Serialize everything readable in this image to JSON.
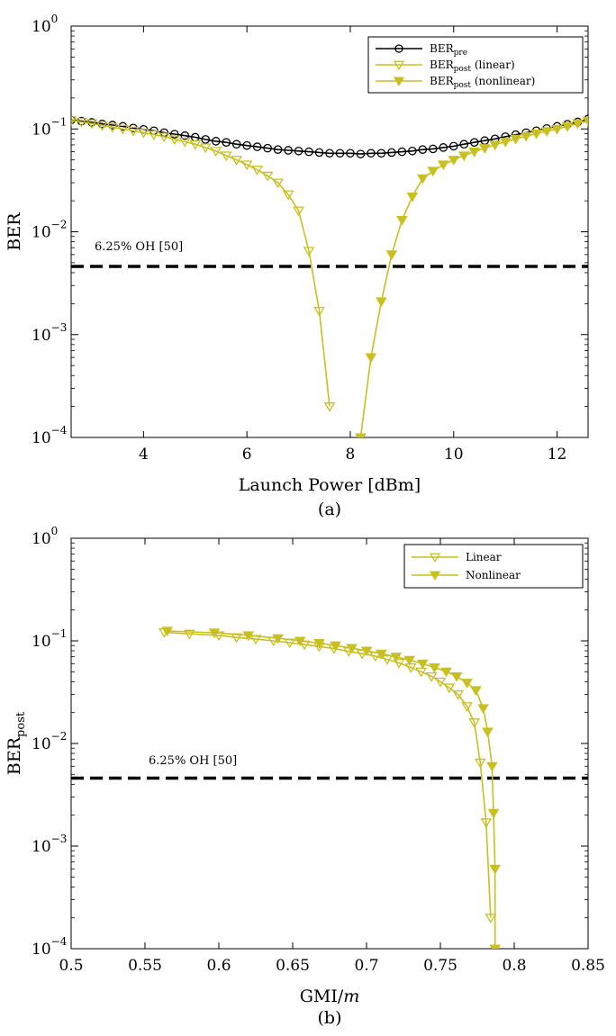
{
  "chart_data": [
    {
      "type": "line",
      "caption": "(a)",
      "xlabel": "Launch Power [dBm]",
      "ylabel": "BER",
      "xlim": [
        2.6,
        12.6
      ],
      "ylim": [
        0.0001,
        1
      ],
      "yscale": "log",
      "xticks": [
        4,
        6,
        8,
        10,
        12
      ],
      "xtick_labels": [
        "4",
        "6",
        "8",
        "10",
        "12"
      ],
      "yticks": [
        0.0001,
        0.001,
        0.01,
        0.1,
        1
      ],
      "ytick_labels": [
        {
          "base": "10",
          "exp": "−4"
        },
        {
          "base": "10",
          "exp": "−3"
        },
        {
          "base": "10",
          "exp": "−2"
        },
        {
          "base": "10",
          "exp": "−1"
        },
        {
          "base": "10",
          "exp": "0"
        }
      ],
      "grid": false,
      "legend_position": "top-right",
      "threshold": {
        "value": 0.0046,
        "label": "6.25% OH [50]"
      },
      "series": [
        {
          "legend_main": "BER",
          "legend_sub": "pre",
          "legend_suffix": "",
          "color": "#000000",
          "marker": "circle",
          "x": [
            2.6,
            2.8,
            3.0,
            3.2,
            3.4,
            3.6,
            3.8,
            4.0,
            4.2,
            4.4,
            4.6,
            4.8,
            5.0,
            5.2,
            5.4,
            5.6,
            5.8,
            6.0,
            6.2,
            6.4,
            6.6,
            6.8,
            7.0,
            7.2,
            7.4,
            7.6,
            7.8,
            8.0,
            8.2,
            8.4,
            8.6,
            8.8,
            9.0,
            9.2,
            9.4,
            9.6,
            9.8,
            10.0,
            10.2,
            10.4,
            10.6,
            10.8,
            11.0,
            11.2,
            11.4,
            11.6,
            11.8,
            12.0,
            12.2,
            12.4,
            12.6
          ],
          "y": [
            0.122,
            0.119,
            0.116,
            0.112,
            0.109,
            0.106,
            0.102,
            0.099,
            0.096,
            0.092,
            0.089,
            0.086,
            0.083,
            0.079,
            0.076,
            0.074,
            0.071,
            0.069,
            0.067,
            0.065,
            0.063,
            0.062,
            0.061,
            0.06,
            0.059,
            0.058,
            0.058,
            0.058,
            0.057,
            0.058,
            0.058,
            0.059,
            0.06,
            0.061,
            0.063,
            0.064,
            0.066,
            0.068,
            0.071,
            0.074,
            0.077,
            0.08,
            0.084,
            0.088,
            0.092,
            0.096,
            0.101,
            0.106,
            0.111,
            0.117,
            0.125
          ]
        },
        {
          "legend_main": "BER",
          "legend_sub": "post",
          "legend_suffix": " (linear)",
          "color": "#c8c020",
          "marker": "triangle-down-open",
          "x": [
            2.6,
            2.8,
            3.0,
            3.2,
            3.4,
            3.6,
            3.8,
            4.0,
            4.2,
            4.4,
            4.6,
            4.8,
            5.0,
            5.2,
            5.4,
            5.6,
            5.8,
            6.0,
            6.2,
            6.4,
            6.6,
            6.8,
            7.0,
            7.2,
            7.4,
            7.6
          ],
          "y": [
            0.121,
            0.117,
            0.113,
            0.108,
            0.104,
            0.1,
            0.096,
            0.092,
            0.088,
            0.084,
            0.079,
            0.075,
            0.071,
            0.066,
            0.061,
            0.055,
            0.05,
            0.045,
            0.04,
            0.035,
            0.03,
            0.023,
            0.016,
            0.0065,
            0.0017,
            0.0002
          ]
        },
        {
          "legend_main": "BER",
          "legend_sub": "post",
          "legend_suffix": " (nonlinear)",
          "color": "#c8c020",
          "marker": "triangle-down-filled",
          "x": [
            8.2,
            8.4,
            8.6,
            8.8,
            9.0,
            9.2,
            9.4,
            9.6,
            9.8,
            10.0,
            10.2,
            10.4,
            10.6,
            10.8,
            11.0,
            11.2,
            11.4,
            11.6,
            11.8,
            12.0,
            12.2,
            12.4,
            12.6
          ],
          "y": [
            0.0001,
            0.0006,
            0.0021,
            0.006,
            0.013,
            0.022,
            0.033,
            0.039,
            0.045,
            0.05,
            0.055,
            0.06,
            0.065,
            0.07,
            0.075,
            0.08,
            0.085,
            0.09,
            0.095,
            0.1,
            0.106,
            0.113,
            0.12
          ]
        }
      ]
    },
    {
      "type": "line",
      "caption": "(b)",
      "xlabel": "GMI/m",
      "xlabel_main": "GMI/",
      "xlabel_italic": "m",
      "ylabel_main": "BER",
      "ylabel_sub": "post",
      "xlim": [
        0.5,
        0.85
      ],
      "ylim": [
        0.0001,
        1
      ],
      "yscale": "log",
      "xticks": [
        0.5,
        0.55,
        0.6,
        0.65,
        0.7,
        0.75,
        0.8,
        0.85
      ],
      "xtick_labels": [
        "0.5",
        "0.55",
        "0.6",
        "0.65",
        "0.7",
        "0.75",
        "0.8",
        "0.85"
      ],
      "yticks": [
        0.0001,
        0.001,
        0.01,
        0.1,
        1
      ],
      "ytick_labels": [
        {
          "base": "10",
          "exp": "−4"
        },
        {
          "base": "10",
          "exp": "−3"
        },
        {
          "base": "10",
          "exp": "−2"
        },
        {
          "base": "10",
          "exp": "−1"
        },
        {
          "base": "10",
          "exp": "0"
        }
      ],
      "grid": false,
      "legend_position": "top-right",
      "threshold": {
        "value": 0.0046,
        "label": "6.25% OH [50]"
      },
      "series": [
        {
          "legend_main": "Linear",
          "legend_sub": "",
          "legend_suffix": "",
          "color": "#c8c020",
          "marker": "triangle-down-open",
          "x": [
            0.563,
            0.58,
            0.6,
            0.612,
            0.625,
            0.637,
            0.648,
            0.658,
            0.668,
            0.678,
            0.688,
            0.697,
            0.706,
            0.714,
            0.722,
            0.73,
            0.737,
            0.744,
            0.75,
            0.756,
            0.762,
            0.768,
            0.773,
            0.777,
            0.781,
            0.784
          ],
          "y": [
            0.121,
            0.117,
            0.113,
            0.108,
            0.104,
            0.1,
            0.096,
            0.092,
            0.088,
            0.084,
            0.079,
            0.075,
            0.071,
            0.066,
            0.061,
            0.055,
            0.05,
            0.045,
            0.04,
            0.035,
            0.03,
            0.023,
            0.016,
            0.0065,
            0.0017,
            0.0002
          ]
        },
        {
          "legend_main": "Nonlinear",
          "legend_sub": "",
          "legend_suffix": "",
          "color": "#c8c020",
          "marker": "triangle-down-filled",
          "x": [
            0.787,
            0.787,
            0.786,
            0.785,
            0.782,
            0.779,
            0.774,
            0.768,
            0.761,
            0.754,
            0.746,
            0.738,
            0.729,
            0.72,
            0.71,
            0.7,
            0.69,
            0.679,
            0.668,
            0.655,
            0.64,
            0.62,
            0.597,
            0.565
          ],
          "y": [
            0.0001,
            0.0006,
            0.0021,
            0.006,
            0.013,
            0.022,
            0.033,
            0.039,
            0.045,
            0.05,
            0.055,
            0.06,
            0.065,
            0.07,
            0.075,
            0.08,
            0.085,
            0.09,
            0.095,
            0.1,
            0.106,
            0.113,
            0.12,
            0.125
          ]
        }
      ]
    }
  ]
}
